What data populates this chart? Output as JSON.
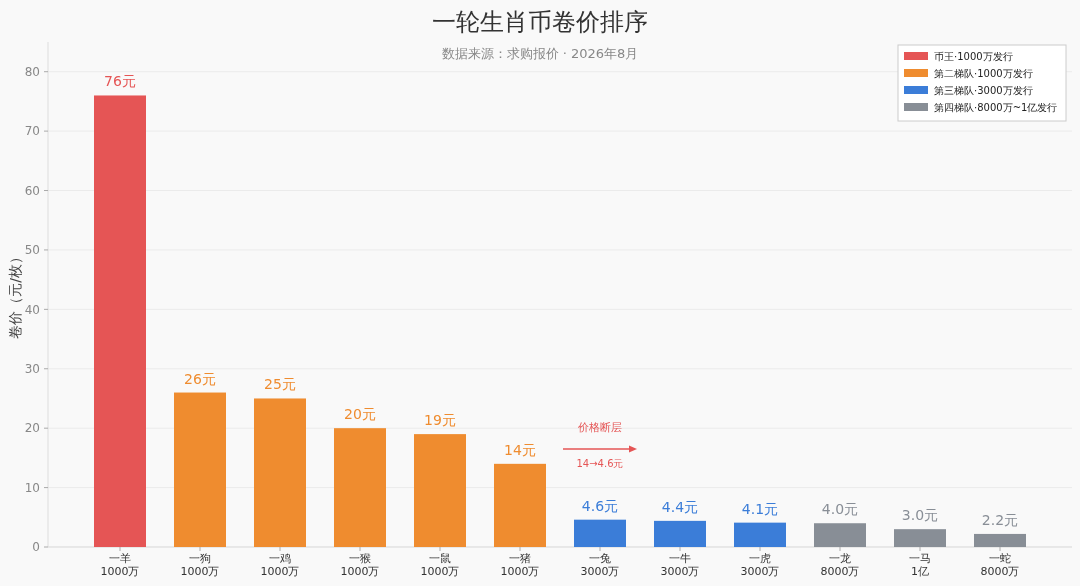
{
  "chart_data": {
    "type": "bar",
    "title": "一轮生肖币卷价排序",
    "subtitle": "数据来源：求购报价 · 2026年8月",
    "ylabel": "卷价（元/枚）",
    "categories": [
      "一羊\n1000万",
      "一狗\n1000万",
      "一鸡\n1000万",
      "一猴\n1000万",
      "一鼠\n1000万",
      "一猪\n1000万",
      "一兔\n3000万",
      "一牛\n3000万",
      "一虎\n3000万",
      "一龙\n8000万",
      "一马\n1亿",
      "一蛇\n8000万"
    ],
    "series": [
      {
        "name": "币王·1000万发行",
        "color": "#e55555",
        "values": [
          76,
          null,
          null,
          null,
          null,
          null,
          null,
          null,
          null,
          null,
          null,
          null
        ],
        "value_labels": [
          "76元",
          null,
          null,
          null,
          null,
          null,
          null,
          null,
          null,
          null,
          null,
          null
        ]
      },
      {
        "name": "第二梯队·1000万发行",
        "color": "#ef8c2f",
        "values": [
          null,
          26,
          25,
          20,
          19,
          14,
          null,
          null,
          null,
          null,
          null,
          null
        ],
        "value_labels": [
          null,
          "26元",
          "25元",
          "20元",
          "19元",
          "14元",
          null,
          null,
          null,
          null,
          null,
          null
        ]
      },
      {
        "name": "第三梯队·3000万发行",
        "color": "#3b7dd8",
        "values": [
          null,
          null,
          null,
          null,
          null,
          null,
          4.6,
          4.4,
          4.1,
          null,
          null,
          null
        ],
        "value_labels": [
          null,
          null,
          null,
          null,
          null,
          null,
          "4.6元",
          "4.4元",
          "4.1元",
          null,
          null,
          null
        ]
      },
      {
        "name": "第四梯队·8000万~1亿发行",
        "color": "#888e96",
        "values": [
          null,
          null,
          null,
          null,
          null,
          null,
          null,
          null,
          null,
          4.0,
          3.0,
          2.2
        ],
        "value_labels": [
          null,
          null,
          null,
          null,
          null,
          null,
          null,
          null,
          null,
          "4.0元",
          "3.0元",
          "2.2元"
        ]
      }
    ],
    "annotations": [
      "价格断层",
      "14→4.6元"
    ],
    "ylim": [
      0,
      85
    ],
    "yticks": [
      0,
      10,
      20,
      30,
      40,
      50,
      60,
      70,
      80
    ],
    "grid": "y",
    "legend": "top right"
  }
}
